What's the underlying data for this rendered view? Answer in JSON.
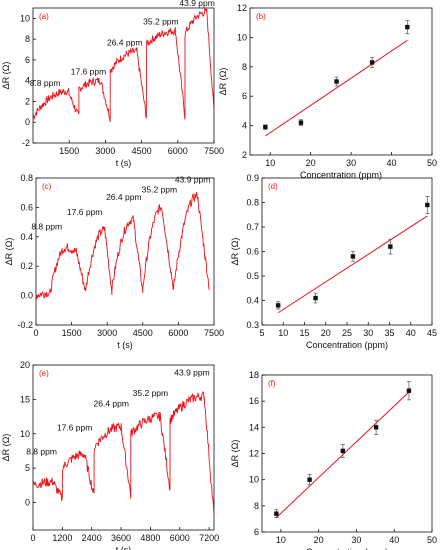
{
  "colors": {
    "trace": "#e8141b",
    "fit": "#e8141b",
    "points": "#111111",
    "axis": "#111111",
    "panel_label": "#e21b1b"
  },
  "chart_data": [
    {
      "type": "line",
      "panel_label": "(a)",
      "xlabel": "t (s)",
      "ylabel": "ΔR (Ω)",
      "xlim": [
        0,
        7500
      ],
      "ylim": [
        -2,
        11
      ],
      "xticks": [
        1500,
        3000,
        4500,
        6000,
        7500
      ],
      "yticks": [
        -2,
        0,
        2,
        4,
        6,
        8,
        10
      ],
      "series": [
        {
          "segments": [
            {
              "x": [
                0,
                1450
              ],
              "start": 0.5,
              "end": 3.0
            },
            {
              "x": [
                1450,
                1900
              ],
              "start": 3.0,
              "end": 0.5
            },
            {
              "x": [
                1900,
                2800
              ],
              "start": 3.2,
              "end": 4.0
            },
            {
              "x": [
                2800,
                3200
              ],
              "start": 4.0,
              "end": 0.4
            },
            {
              "x": [
                3200,
                4300
              ],
              "start": 5.0,
              "end": 6.8
            },
            {
              "x": [
                4300,
                4700
              ],
              "start": 6.8,
              "end": 0.5
            },
            {
              "x": [
                4700,
                5900
              ],
              "start": 7.5,
              "end": 8.8
            },
            {
              "x": [
                5900,
                6300
              ],
              "start": 8.8,
              "end": 0.5
            },
            {
              "x": [
                6300,
                7200
              ],
              "start": 8.5,
              "end": 10.6
            },
            {
              "x": [
                7200,
                7500
              ],
              "start": 10.6,
              "end": 1.0
            }
          ]
        }
      ],
      "annotations": [
        {
          "text": "8.8 ppm",
          "x": 500,
          "y": 3.5
        },
        {
          "text": "17.6 ppm",
          "x": 2300,
          "y": 4.6
        },
        {
          "text": "26.4 ppm",
          "x": 3800,
          "y": 7.4
        },
        {
          "text": "35.2 ppm",
          "x": 5300,
          "y": 9.4
        },
        {
          "text": "43.9 ppm",
          "x": 6800,
          "y": 11.2
        }
      ]
    },
    {
      "type": "scatter",
      "panel_label": "(b)",
      "xlabel": "Concentration (ppm)",
      "ylabel": "ΔR (Ω)",
      "xlim": [
        5,
        50
      ],
      "ylim": [
        2,
        12
      ],
      "xticks": [
        10,
        20,
        30,
        40,
        50
      ],
      "yticks": [
        2,
        4,
        6,
        8,
        10,
        12
      ],
      "x": [
        8.8,
        17.6,
        26.4,
        35.2,
        43.9
      ],
      "y": [
        3.9,
        4.2,
        7.0,
        8.3,
        10.7
      ],
      "err": [
        0.15,
        0.2,
        0.3,
        0.35,
        0.45
      ],
      "fit": {
        "x": [
          8.8,
          43.9
        ],
        "y": [
          3.3,
          9.8
        ]
      }
    },
    {
      "type": "line",
      "panel_label": "(c)",
      "xlabel": "t (s)",
      "ylabel": "ΔR (Ω)",
      "xlim": [
        0,
        7500
      ],
      "ylim": [
        -0.2,
        0.8
      ],
      "xticks": [
        0,
        1500,
        3000,
        4500,
        6000,
        7500
      ],
      "yticks": [
        -0.2,
        0.0,
        0.2,
        0.4,
        0.6,
        0.8
      ],
      "series": [
        {
          "segments": [
            {
              "x": [
                0,
                600
              ],
              "start": 0.0,
              "end": 0.02
            },
            {
              "x": [
                600,
                1300
              ],
              "start": 0.02,
              "end": 0.33
            },
            {
              "x": [
                1300,
                1700
              ],
              "start": 0.33,
              "end": 0.3
            },
            {
              "x": [
                1700,
                2100
              ],
              "start": 0.3,
              "end": 0.02
            },
            {
              "x": [
                2100,
                2900
              ],
              "start": 0.05,
              "end": 0.45
            },
            {
              "x": [
                2900,
                3200
              ],
              "start": 0.45,
              "end": 0.02
            },
            {
              "x": [
                3200,
                4100
              ],
              "start": 0.05,
              "end": 0.52
            },
            {
              "x": [
                4100,
                4500
              ],
              "start": 0.52,
              "end": 0.03
            },
            {
              "x": [
                4500,
                5300
              ],
              "start": 0.05,
              "end": 0.6
            },
            {
              "x": [
                5300,
                5800
              ],
              "start": 0.6,
              "end": 0.04
            },
            {
              "x": [
                5800,
                6800
              ],
              "start": 0.05,
              "end": 0.68
            },
            {
              "x": [
                6800,
                7300
              ],
              "start": 0.68,
              "end": 0.05
            }
          ]
        }
      ],
      "annotations": [
        {
          "text": "8.8 ppm",
          "x": 450,
          "y": 0.45
        },
        {
          "text": "17.6 ppm",
          "x": 2050,
          "y": 0.55
        },
        {
          "text": "26.4 ppm",
          "x": 3700,
          "y": 0.65
        },
        {
          "text": "35.2 ppm",
          "x": 5200,
          "y": 0.7
        },
        {
          "text": "43.9 ppm",
          "x": 6600,
          "y": 0.77
        }
      ]
    },
    {
      "type": "scatter",
      "panel_label": "(d)",
      "xlabel": "Concentration (ppm)",
      "ylabel": "ΔR (Ω)",
      "xlim": [
        5,
        45
      ],
      "ylim": [
        0.3,
        0.9
      ],
      "xticks": [
        5,
        10,
        15,
        20,
        25,
        30,
        35,
        40,
        45
      ],
      "yticks": [
        0.3,
        0.4,
        0.5,
        0.6,
        0.7,
        0.8,
        0.9
      ],
      "x": [
        8.8,
        17.6,
        26.4,
        35.2,
        43.9
      ],
      "y": [
        0.38,
        0.41,
        0.58,
        0.62,
        0.79
      ],
      "err": [
        0.015,
        0.02,
        0.02,
        0.03,
        0.035
      ],
      "fit": {
        "x": [
          8.8,
          43.9
        ],
        "y": [
          0.35,
          0.745
        ]
      }
    },
    {
      "type": "line",
      "panel_label": "(e)",
      "xlabel": "t (s)",
      "ylabel": "ΔR (Ω)",
      "xlim": [
        0,
        7400
      ],
      "ylim": [
        -4,
        20
      ],
      "xticks": [
        0,
        1200,
        2400,
        3600,
        4800,
        6000,
        7200
      ],
      "yticks": [
        0,
        5,
        10,
        15,
        20
      ],
      "series": [
        {
          "segments": [
            {
              "x": [
                0,
                800
              ],
              "start": 2.5,
              "end": 3.0
            },
            {
              "x": [
                800,
                1200
              ],
              "start": 3.0,
              "end": 0.5
            },
            {
              "x": [
                1200,
                2100
              ],
              "start": 5.0,
              "end": 7.0
            },
            {
              "x": [
                2100,
                2500
              ],
              "start": 7.0,
              "end": 1.0
            },
            {
              "x": [
                2500,
                3600
              ],
              "start": 8.0,
              "end": 11.0
            },
            {
              "x": [
                3600,
                4000
              ],
              "start": 11.0,
              "end": 1.0
            },
            {
              "x": [
                4000,
                5200
              ],
              "start": 10.0,
              "end": 12.5
            },
            {
              "x": [
                5200,
                5600
              ],
              "start": 12.5,
              "end": 2.0
            },
            {
              "x": [
                5600,
                7000
              ],
              "start": 12.0,
              "end": 15.5
            },
            {
              "x": [
                7000,
                7400
              ],
              "start": 15.5,
              "end": -2.0
            }
          ]
        }
      ],
      "annotations": [
        {
          "text": "8.8 ppm",
          "x": 350,
          "y": 7.0
        },
        {
          "text": "17.6 ppm",
          "x": 1700,
          "y": 10.5
        },
        {
          "text": "26.4 ppm",
          "x": 3200,
          "y": 14.0
        },
        {
          "text": "35.2 ppm",
          "x": 4800,
          "y": 15.5
        },
        {
          "text": "43.9 ppm",
          "x": 6500,
          "y": 18.5
        }
      ]
    },
    {
      "type": "scatter",
      "panel_label": "(f)",
      "xlabel": "Concentration (ppm)",
      "ylabel": "ΔR (Ω)",
      "xlim": [
        5,
        50
      ],
      "ylim": [
        6,
        18
      ],
      "xticks": [
        10,
        20,
        30,
        40,
        50
      ],
      "yticks": [
        6,
        8,
        10,
        12,
        14,
        16,
        18
      ],
      "x": [
        8.8,
        17.6,
        26.4,
        35.2,
        43.9
      ],
      "y": [
        7.4,
        10.0,
        12.2,
        14.0,
        16.8
      ],
      "err": [
        0.3,
        0.4,
        0.5,
        0.55,
        0.7
      ],
      "fit": {
        "x": [
          8.8,
          43.9
        ],
        "y": [
          7.1,
          16.7
        ]
      }
    }
  ]
}
